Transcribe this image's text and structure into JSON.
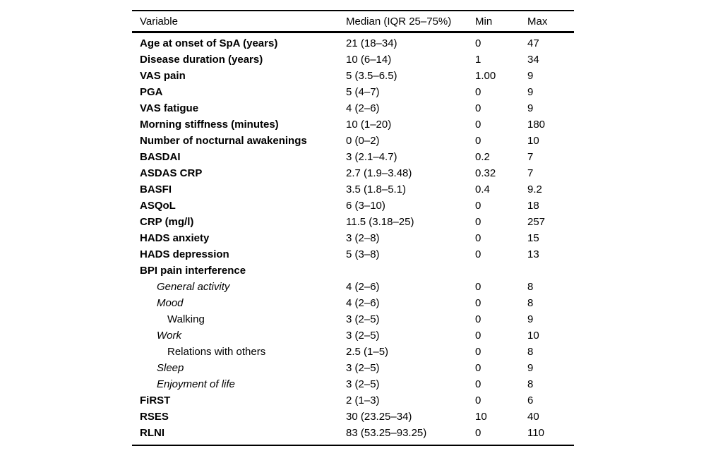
{
  "colors": {
    "text": "#000000",
    "background": "#ffffff",
    "rule": "#000000"
  },
  "table": {
    "columns": [
      "Variable",
      "Median (IQR 25–75%)",
      "Min",
      "Max"
    ],
    "rows": [
      {
        "variable": "Age at onset of SpA (years)",
        "median": "21 (18–34)",
        "min": "0",
        "max": "47",
        "level": "main"
      },
      {
        "variable": "Disease duration (years)",
        "median": "10 (6–14)",
        "min": "1",
        "max": "34",
        "level": "main"
      },
      {
        "variable": "VAS pain",
        "median": "5 (3.5–6.5)",
        "min": "1.00",
        "max": "9",
        "level": "main"
      },
      {
        "variable": "PGA",
        "median": "5 (4–7)",
        "min": "0",
        "max": "9",
        "level": "main"
      },
      {
        "variable": "VAS fatigue",
        "median": "4 (2–6)",
        "min": "0",
        "max": "9",
        "level": "main"
      },
      {
        "variable": "Morning stiffness (minutes)",
        "median": "10 (1–20)",
        "min": "0",
        "max": "180",
        "level": "main"
      },
      {
        "variable": "Number of nocturnal awakenings",
        "median": "0 (0–2)",
        "min": "0",
        "max": "10",
        "level": "main"
      },
      {
        "variable": "BASDAI",
        "median": "3 (2.1–4.7)",
        "min": "0.2",
        "max": "7",
        "level": "main"
      },
      {
        "variable": "ASDAS CRP",
        "median": "2.7 (1.9–3.48)",
        "min": "0.32",
        "max": "7",
        "level": "main"
      },
      {
        "variable": "BASFI",
        "median": "3.5 (1.8–5.1)",
        "min": "0.4",
        "max": "9.2",
        "level": "main"
      },
      {
        "variable": "ASQoL",
        "median": "6 (3–10)",
        "min": "0",
        "max": "18",
        "level": "main"
      },
      {
        "variable": "CRP (mg/l)",
        "median": "11.5 (3.18–25)",
        "min": "0",
        "max": "257",
        "level": "main"
      },
      {
        "variable": "HADS anxiety",
        "median": "3 (2–8)",
        "min": "0",
        "max": "15",
        "level": "main"
      },
      {
        "variable": "HADS depression",
        "median": "5 (3–8)",
        "min": "0",
        "max": "13",
        "level": "main"
      },
      {
        "variable": "BPI pain interference",
        "median": "",
        "min": "",
        "max": "",
        "level": "main"
      },
      {
        "variable": "General activity",
        "median": "4 (2–6)",
        "min": "0",
        "max": "8",
        "level": "sub"
      },
      {
        "variable": "Mood",
        "median": "4 (2–6)",
        "min": "0",
        "max": "8",
        "level": "sub"
      },
      {
        "variable": "Walking",
        "median": "3 (2–5)",
        "min": "0",
        "max": "9",
        "level": "sub2"
      },
      {
        "variable": "Work",
        "median": "3 (2–5)",
        "min": "0",
        "max": "10",
        "level": "sub"
      },
      {
        "variable": "Relations with others",
        "median": "2.5 (1–5)",
        "min": "0",
        "max": "8",
        "level": "sub2"
      },
      {
        "variable": "Sleep",
        "median": "3 (2–5)",
        "min": "0",
        "max": "9",
        "level": "sub"
      },
      {
        "variable": "Enjoyment of life",
        "median": "3 (2–5)",
        "min": "0",
        "max": "8",
        "level": "sub"
      },
      {
        "variable": "FiRST",
        "median": "2 (1–3)",
        "min": "0",
        "max": "6",
        "level": "main"
      },
      {
        "variable": "RSES",
        "median": "30 (23.25–34)",
        "min": "10",
        "max": "40",
        "level": "main"
      },
      {
        "variable": "RLNI",
        "median": "83 (53.25–93.25)",
        "min": "0",
        "max": "110",
        "level": "main"
      }
    ]
  }
}
